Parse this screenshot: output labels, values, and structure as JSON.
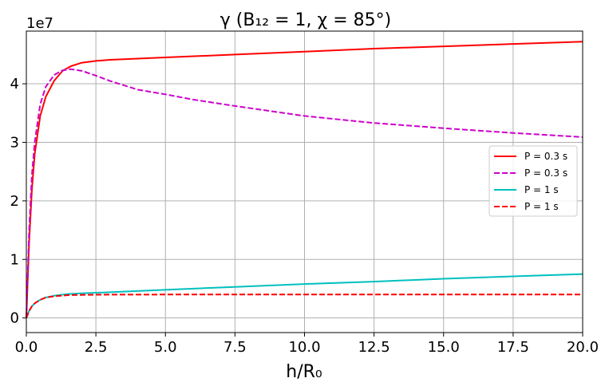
{
  "chart_data": {
    "type": "line",
    "title": "γ (B₁₂ = 1, χ = 85°)",
    "xlabel": "h/R₀",
    "ylabel": "",
    "y_offset_label": "1e7",
    "xlim": [
      0,
      20
    ],
    "ylim": [
      -0.25,
      4.9
    ],
    "y_scale_factor": 10000000,
    "grid": true,
    "legend_placement": "center-right",
    "x_ticks": [
      "0.0",
      "2.5",
      "5.0",
      "7.5",
      "10.0",
      "12.5",
      "15.0",
      "17.5",
      "20.0"
    ],
    "y_ticks": [
      "0",
      "1",
      "2",
      "3",
      "4"
    ],
    "series": [
      {
        "name": "P = 0.3 s",
        "color": "#ff0000",
        "style": "solid",
        "x": [
          0,
          0.1,
          0.2,
          0.3,
          0.5,
          0.7,
          1.0,
          1.3,
          1.6,
          2.0,
          2.5,
          3.0,
          4.0,
          5.0,
          7.5,
          10.0,
          12.5,
          15.0,
          17.5,
          20.0
        ],
        "y": [
          0,
          1.3,
          2.2,
          2.8,
          3.45,
          3.78,
          4.05,
          4.22,
          4.3,
          4.36,
          4.39,
          4.41,
          4.43,
          4.45,
          4.5,
          4.55,
          4.6,
          4.64,
          4.68,
          4.72
        ]
      },
      {
        "name": "P = 0.3 s",
        "color": "#cc00cc",
        "style": "dashed",
        "x": [
          0,
          0.1,
          0.2,
          0.3,
          0.5,
          0.7,
          1.0,
          1.3,
          1.6,
          2.0,
          2.5,
          3.0,
          4.0,
          5.0,
          6.0,
          7.5,
          10.0,
          12.5,
          15.0,
          17.5,
          20.0
        ],
        "y": [
          0,
          1.5,
          2.45,
          3.0,
          3.65,
          3.95,
          4.15,
          4.23,
          4.25,
          4.22,
          4.14,
          4.05,
          3.9,
          3.82,
          3.73,
          3.62,
          3.45,
          3.33,
          3.24,
          3.16,
          3.09
        ]
      },
      {
        "name": "P = 1 s",
        "color": "#00bfbf",
        "style": "solid",
        "x": [
          0,
          0.1,
          0.2,
          0.3,
          0.5,
          0.7,
          1.0,
          1.5,
          2.0,
          3.0,
          5.0,
          7.5,
          10.0,
          12.5,
          15.0,
          17.5,
          20.0
        ],
        "y": [
          0,
          0.12,
          0.2,
          0.25,
          0.31,
          0.35,
          0.38,
          0.41,
          0.42,
          0.44,
          0.48,
          0.53,
          0.58,
          0.62,
          0.67,
          0.71,
          0.75
        ]
      },
      {
        "name": "P = 1 s",
        "color": "#ff0000",
        "style": "dashed",
        "x": [
          0,
          0.1,
          0.2,
          0.3,
          0.5,
          0.7,
          1.0,
          1.5,
          2.0,
          3.0,
          5.0,
          7.5,
          10.0,
          12.5,
          15.0,
          17.5,
          20.0
        ],
        "y": [
          0,
          0.12,
          0.2,
          0.25,
          0.31,
          0.35,
          0.37,
          0.39,
          0.395,
          0.398,
          0.4,
          0.4,
          0.4,
          0.4,
          0.4,
          0.4,
          0.4
        ]
      }
    ]
  }
}
